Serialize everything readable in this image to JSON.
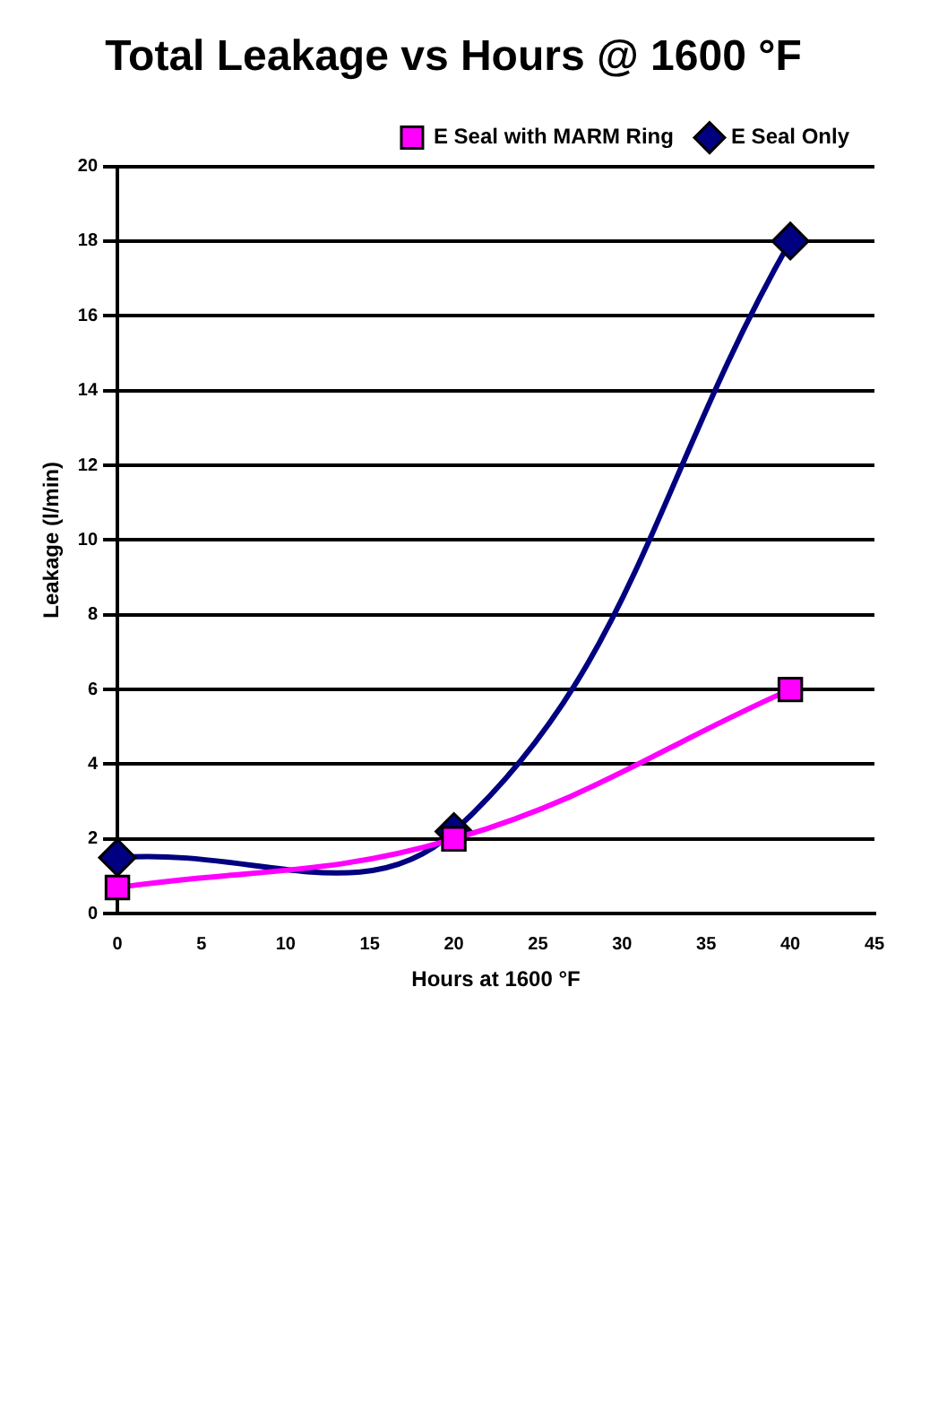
{
  "chart_data": {
    "type": "line",
    "title": "Total Leakage vs Hours @ 1600 °F",
    "xlabel": "Hours at 1600 °F",
    "ylabel": "Leakage (l/min)",
    "x": [
      0,
      20,
      40
    ],
    "series": [
      {
        "name": "E Seal Only",
        "color": "#000080",
        "values": [
          1.5,
          2.2,
          18
        ],
        "marker": "diamond"
      },
      {
        "name": "E Seal with MARM Ring",
        "color": "#ff00ff",
        "values": [
          0.7,
          2,
          6
        ],
        "marker": "square"
      }
    ],
    "xlim": [
      0,
      45
    ],
    "xticks": [
      0,
      5,
      10,
      15,
      20,
      25,
      30,
      35,
      40,
      45
    ],
    "ylim": [
      0,
      20
    ],
    "yticks": [
      0,
      2,
      4,
      6,
      8,
      10,
      12,
      14,
      16,
      18,
      20
    ],
    "grid": "y",
    "legend": "top right",
    "line_style": "solid"
  }
}
